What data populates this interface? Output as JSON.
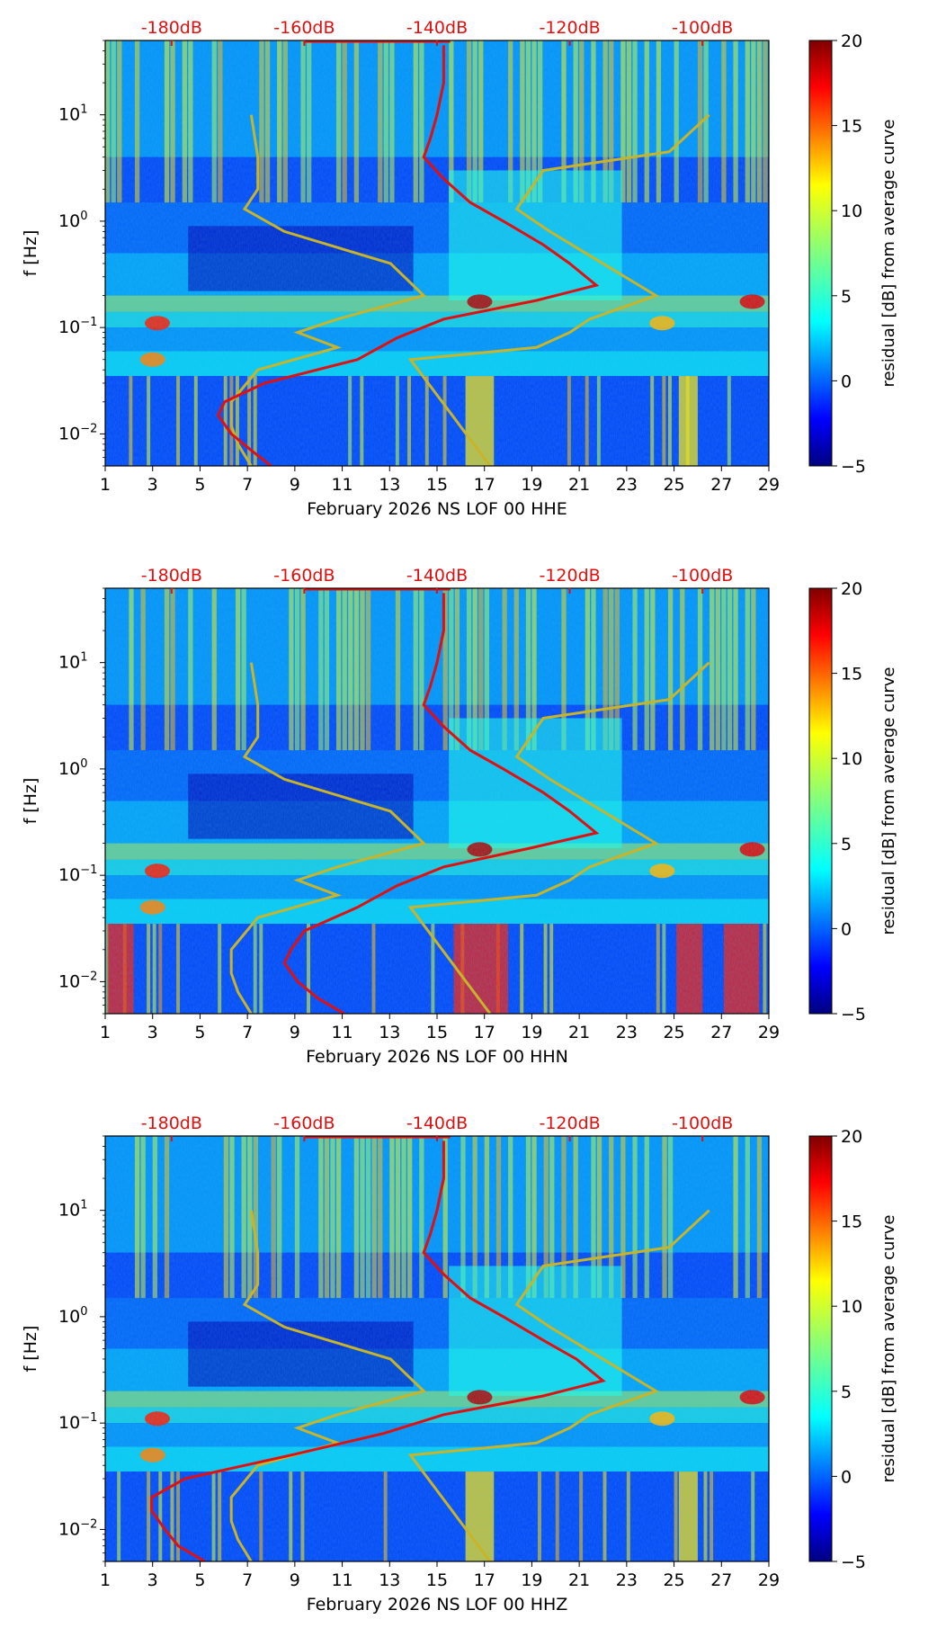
{
  "chart_data": [
    {
      "type": "heatmap",
      "xlabel": "February 2026 NS LOF 00 HHE",
      "ylabel": "f [Hz]",
      "colorbar_label": "residual [dB] from average curve",
      "x_ticks": [
        "1",
        "3",
        "5",
        "7",
        "9",
        "11",
        "13",
        "15",
        "17",
        "19",
        "21",
        "23",
        "25",
        "27",
        "29"
      ],
      "top_ticks": [
        "-180dB",
        "-160dB",
        "-140dB",
        "-120dB",
        "-100dB"
      ],
      "cbar_ticks": [
        "−5",
        "0",
        "5",
        "10",
        "15",
        "20"
      ],
      "xlim": [
        1,
        29
      ],
      "ylim_hz": [
        0.005,
        50
      ],
      "clim_db": [
        -5,
        20
      ],
      "median_psd_curve": {
        "freq_hz": [
          0.005,
          0.007,
          0.01,
          0.015,
          0.02,
          0.03,
          0.05,
          0.08,
          0.12,
          0.18,
          0.25,
          0.4,
          0.6,
          1,
          1.5,
          2.5,
          4,
          6,
          10,
          20,
          45
        ],
        "db": [
          -165,
          -168,
          -171,
          -173,
          -172,
          -166,
          -152,
          -146,
          -139,
          -125,
          -116,
          -120,
          -124,
          -130,
          -135,
          -139,
          -142,
          -141,
          -140,
          -139,
          -139
        ]
      }
    },
    {
      "type": "heatmap",
      "xlabel": "February 2026 NS LOF 00 HHN",
      "ylabel": "f [Hz]",
      "colorbar_label": "residual [dB] from average curve",
      "x_ticks": [
        "1",
        "3",
        "5",
        "7",
        "9",
        "11",
        "13",
        "15",
        "17",
        "19",
        "21",
        "23",
        "25",
        "27",
        "29"
      ],
      "top_ticks": [
        "-180dB",
        "-160dB",
        "-140dB",
        "-120dB",
        "-100dB"
      ],
      "cbar_ticks": [
        "−5",
        "0",
        "5",
        "10",
        "15",
        "20"
      ],
      "xlim": [
        1,
        29
      ],
      "ylim_hz": [
        0.005,
        50
      ],
      "clim_db": [
        -5,
        20
      ],
      "median_psd_curve": {
        "freq_hz": [
          0.005,
          0.007,
          0.01,
          0.015,
          0.02,
          0.03,
          0.05,
          0.08,
          0.12,
          0.18,
          0.25,
          0.4,
          0.6,
          1,
          1.5,
          2.5,
          4,
          6,
          10,
          20,
          45
        ],
        "db": [
          -154,
          -158,
          -161,
          -163,
          -162,
          -160,
          -152,
          -146,
          -139,
          -126,
          -116,
          -120,
          -124,
          -130,
          -135,
          -139,
          -142,
          -141,
          -140,
          -139,
          -139
        ]
      }
    },
    {
      "type": "heatmap",
      "xlabel": "February 2026 NS LOF 00 HHZ",
      "ylabel": "f [Hz]",
      "colorbar_label": "residual [dB] from average curve",
      "x_ticks": [
        "1",
        "3",
        "5",
        "7",
        "9",
        "11",
        "13",
        "15",
        "17",
        "19",
        "21",
        "23",
        "25",
        "27",
        "29"
      ],
      "top_ticks": [
        "-180dB",
        "-160dB",
        "-140dB",
        "-120dB",
        "-100dB"
      ],
      "cbar_ticks": [
        "−5",
        "0",
        "5",
        "10",
        "15",
        "20"
      ],
      "xlim": [
        1,
        29
      ],
      "ylim_hz": [
        0.005,
        50
      ],
      "clim_db": [
        -5,
        20
      ],
      "median_psd_curve": {
        "freq_hz": [
          0.005,
          0.007,
          0.01,
          0.015,
          0.02,
          0.03,
          0.05,
          0.08,
          0.12,
          0.18,
          0.25,
          0.4,
          0.6,
          1,
          1.5,
          2.5,
          4,
          6,
          10,
          20,
          45
        ],
        "db": [
          -175,
          -179,
          -181,
          -183,
          -183,
          -178,
          -162,
          -148,
          -139,
          -124,
          -115,
          -119,
          -124,
          -130,
          -135,
          -139,
          -142,
          -141,
          -140,
          -139,
          -139
        ]
      }
    }
  ],
  "noise_model_curves": {
    "low": {
      "freq_hz": [
        0.005,
        0.008,
        0.012,
        0.02,
        0.04,
        0.065,
        0.09,
        0.12,
        0.2,
        0.4,
        0.8,
        1.3,
        2,
        4,
        10
      ],
      "db": [
        -168,
        -170,
        -171,
        -171,
        -167,
        -155,
        -161,
        -155,
        -142,
        -147,
        -163,
        -169,
        -167,
        -167,
        -168
      ]
    },
    "high": {
      "freq_hz": [
        0.005,
        0.05,
        0.065,
        0.09,
        0.12,
        0.2,
        0.4,
        0.8,
        1.3,
        3,
        4.5,
        10
      ],
      "db": [
        -132,
        -144,
        -125,
        -120,
        -117,
        -107,
        -115,
        -123,
        -128,
        -124,
        -105,
        -99
      ]
    }
  }
}
